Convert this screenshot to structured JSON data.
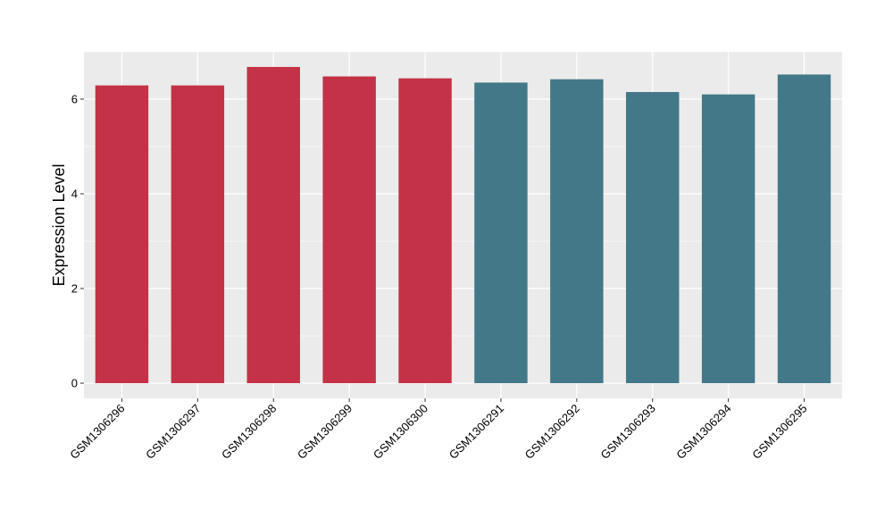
{
  "chart_data": {
    "type": "bar",
    "categories": [
      "GSM1306296",
      "GSM1306297",
      "GSM1306298",
      "GSM1306299",
      "GSM1306300",
      "GSM1306291",
      "GSM1306292",
      "GSM1306293",
      "GSM1306294",
      "GSM1306295"
    ],
    "values": [
      6.29,
      6.29,
      6.68,
      6.48,
      6.44,
      6.35,
      6.42,
      6.15,
      6.1,
      6.52
    ],
    "bar_colors": [
      "#c33246",
      "#c33246",
      "#c33246",
      "#c33246",
      "#c33246",
      "#427888",
      "#427888",
      "#427888",
      "#427888",
      "#427888"
    ],
    "title": "",
    "xlabel": "",
    "ylabel": "Expression Level",
    "ylim": [
      -0.32,
      7.0
    ],
    "yticks": [
      0,
      2,
      4,
      6
    ],
    "grid": true,
    "panel_background": "#ebebeb",
    "grid_color": "#ffffff"
  }
}
